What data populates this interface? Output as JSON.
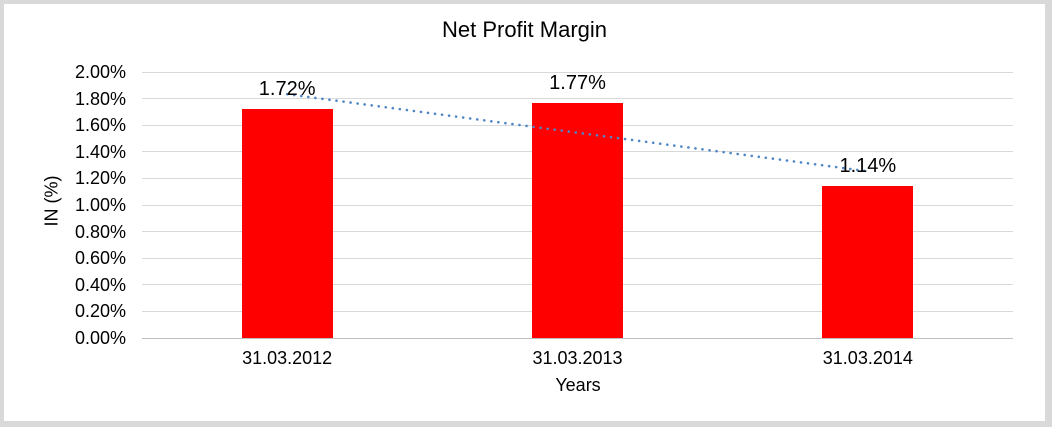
{
  "window": {
    "background": "#ffffff",
    "frame_border_color": "#d9d9d9"
  },
  "chart_data": {
    "type": "bar",
    "title": "Net Profit Margin",
    "xlabel": "Years",
    "ylabel": "IN (%)",
    "categories": [
      "31.03.2012",
      "31.03.2013",
      "31.03.2014"
    ],
    "series": [
      {
        "name": "Net Profit Margin",
        "values": [
          1.72,
          1.77,
          1.14
        ]
      }
    ],
    "data_labels": [
      "1.72%",
      "1.77%",
      "1.14%"
    ],
    "y_tick_labels": [
      "2.00%",
      "1.80%",
      "1.60%",
      "1.40%",
      "1.20%",
      "1.00%",
      "0.80%",
      "0.60%",
      "0.40%",
      "0.20%",
      "0.00%"
    ],
    "y_tick_values": [
      2.0,
      1.8,
      1.6,
      1.4,
      1.2,
      1.0,
      0.8,
      0.6,
      0.4,
      0.2,
      0.0
    ],
    "ylim": [
      0,
      2
    ],
    "grid": true,
    "legend": "none",
    "bar_color": "#ff0000",
    "gridline_color": "#d9d9d9",
    "axis_line_color": "#bfbfbf",
    "text_color": "#000000",
    "trendline": {
      "type": "linear",
      "style": "dotted",
      "color": "#4f86c6",
      "fit_endpoints": [
        1.83,
        1.25
      ]
    }
  }
}
